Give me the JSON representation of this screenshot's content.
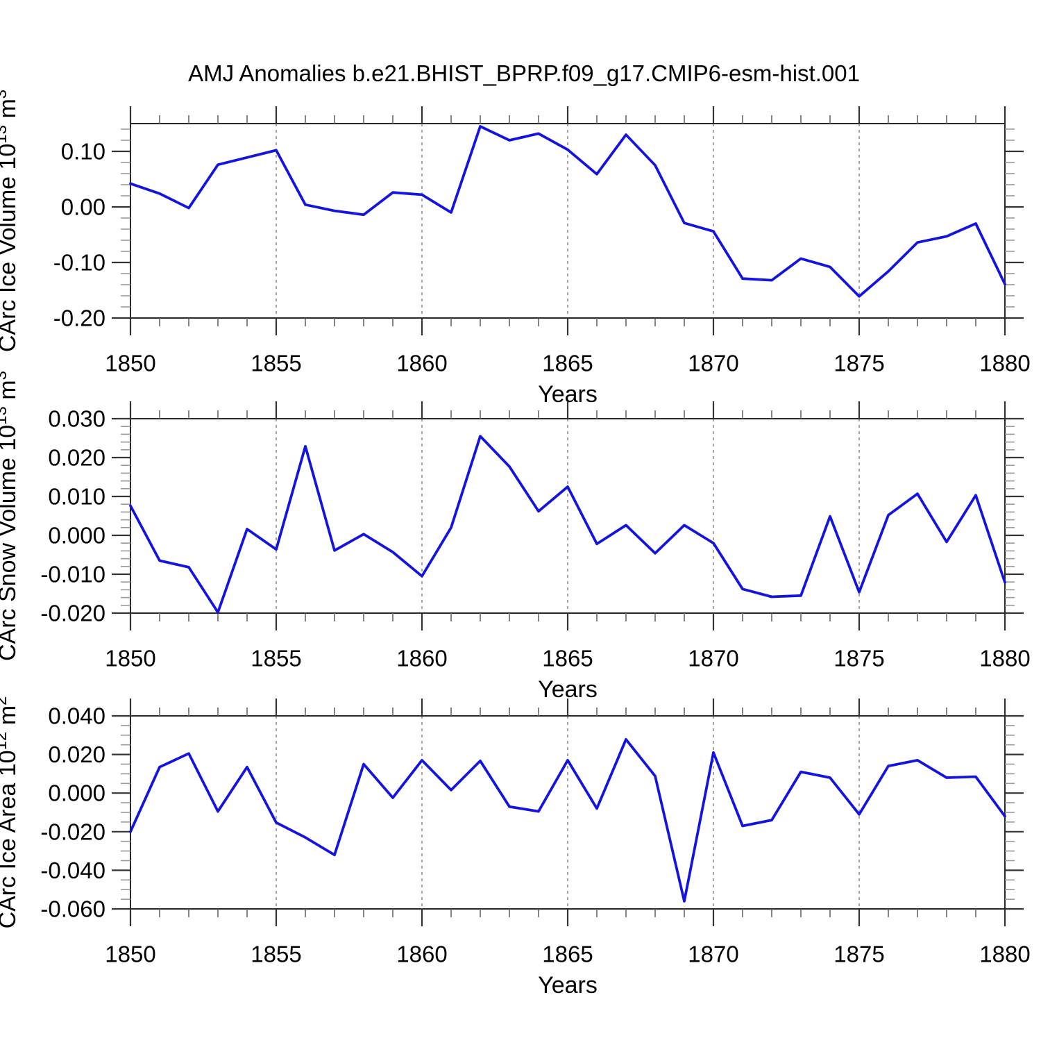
{
  "title": "AMJ Anomalies b.e21.BHIST_BPRP.f09_g17.CMIP6-esm-hist.001",
  "line_color": "#1414DF",
  "axis_color": "#282828",
  "major_tick_color": "#333333",
  "minor_tick_color": "#999999",
  "gridline_color": "#777777",
  "chart_data": [
    {
      "id": "ice-volume",
      "type": "line",
      "title": "",
      "xlabel": "Years",
      "ylabel": "CArc Ice Volume 10^13 m^3",
      "ylabel_parts": [
        {
          "t": "CArc Ice Volume 10"
        },
        {
          "t": "13",
          "sup": true
        },
        {
          "t": " m"
        },
        {
          "t": "3",
          "sup": true
        }
      ],
      "x": [
        1850,
        1851,
        1852,
        1853,
        1854,
        1855,
        1856,
        1857,
        1858,
        1859,
        1860,
        1861,
        1862,
        1863,
        1864,
        1865,
        1866,
        1867,
        1868,
        1869,
        1870,
        1871,
        1872,
        1873,
        1874,
        1875,
        1876,
        1877,
        1878,
        1879,
        1880
      ],
      "values": [
        0.042,
        0.024,
        -0.002,
        0.076,
        0.089,
        0.102,
        0.004,
        -0.007,
        -0.014,
        0.026,
        0.022,
        -0.01,
        0.145,
        0.12,
        0.132,
        0.103,
        0.059,
        0.13,
        0.075,
        -0.029,
        -0.044,
        -0.129,
        -0.132,
        -0.093,
        -0.108,
        -0.161,
        -0.116,
        -0.064,
        -0.053,
        -0.03,
        -0.139
      ],
      "xlim": [
        1850,
        1880
      ],
      "ylim": [
        -0.2,
        0.15
      ],
      "yticks": [
        0.1,
        0.0,
        -0.1,
        -0.2
      ],
      "ytick_labels": [
        "0.10",
        "0.00",
        "-0.10",
        "-0.20"
      ],
      "y_minor_step": 0.02,
      "xticks": [
        1850,
        1855,
        1860,
        1865,
        1870,
        1875,
        1880
      ],
      "xtick_labels": [
        "1850",
        "1855",
        "1860",
        "1865",
        "1870",
        "1875",
        "1880"
      ],
      "x_minor_step": 1,
      "x_gridlines": [
        1855,
        1860,
        1865,
        1870,
        1875
      ],
      "grid": "dashed-vertical",
      "legend": "none"
    },
    {
      "id": "snow-volume",
      "type": "line",
      "title": "",
      "xlabel": "Years",
      "ylabel": "CArc Snow Volume 10^13 m^3",
      "ylabel_parts": [
        {
          "t": "CArc Snow Volume 10"
        },
        {
          "t": "13",
          "sup": true
        },
        {
          "t": " m"
        },
        {
          "t": "3",
          "sup": true
        }
      ],
      "x": [
        1850,
        1851,
        1852,
        1853,
        1854,
        1855,
        1856,
        1857,
        1858,
        1859,
        1860,
        1861,
        1862,
        1863,
        1864,
        1865,
        1866,
        1867,
        1868,
        1869,
        1870,
        1871,
        1872,
        1873,
        1874,
        1875,
        1876,
        1877,
        1878,
        1879,
        1880
      ],
      "values": [
        0.0076,
        -0.0065,
        -0.0082,
        -0.0198,
        0.0016,
        -0.0036,
        0.0229,
        -0.0039,
        0.0003,
        -0.0043,
        -0.0105,
        0.002,
        0.0255,
        0.0177,
        0.0062,
        0.0125,
        -0.0022,
        0.0026,
        -0.0046,
        0.0026,
        -0.002,
        -0.0138,
        -0.0158,
        -0.0155,
        0.0049,
        -0.0146,
        0.0052,
        0.0107,
        -0.0017,
        0.0103,
        -0.0121
      ],
      "xlim": [
        1850,
        1880
      ],
      "ylim": [
        -0.02,
        0.03
      ],
      "yticks": [
        0.03,
        0.02,
        0.01,
        0.0,
        -0.01,
        -0.02
      ],
      "ytick_labels": [
        "0.030",
        "0.020",
        "0.010",
        "0.000",
        "-0.010",
        "-0.020"
      ],
      "y_minor_step": 0.002,
      "xticks": [
        1850,
        1855,
        1860,
        1865,
        1870,
        1875,
        1880
      ],
      "xtick_labels": [
        "1850",
        "1855",
        "1860",
        "1865",
        "1870",
        "1875",
        "1880"
      ],
      "x_minor_step": 1,
      "x_gridlines": [
        1855,
        1860,
        1865,
        1870,
        1875
      ],
      "grid": "dashed-vertical",
      "legend": "none"
    },
    {
      "id": "ice-area",
      "type": "line",
      "title": "",
      "xlabel": "Years",
      "ylabel": "CArc Ice Area 10^12 m^2",
      "ylabel_parts": [
        {
          "t": "CArc Ice Area 10"
        },
        {
          "t": "12",
          "sup": true
        },
        {
          "t": " m"
        },
        {
          "t": "2",
          "sup": true
        }
      ],
      "x": [
        1850,
        1851,
        1852,
        1853,
        1854,
        1855,
        1856,
        1857,
        1858,
        1859,
        1860,
        1861,
        1862,
        1863,
        1864,
        1865,
        1866,
        1867,
        1868,
        1869,
        1870,
        1871,
        1872,
        1873,
        1874,
        1875,
        1876,
        1877,
        1878,
        1879,
        1880
      ],
      "values": [
        -0.02,
        0.0135,
        0.0205,
        -0.0095,
        0.0135,
        -0.0153,
        -0.023,
        -0.032,
        0.015,
        -0.0024,
        0.017,
        0.0016,
        0.0167,
        -0.007,
        -0.0095,
        0.017,
        -0.008,
        0.0278,
        0.0088,
        -0.056,
        0.021,
        -0.017,
        -0.014,
        0.011,
        0.008,
        -0.011,
        0.014,
        0.017,
        0.008,
        0.0085,
        -0.012
      ],
      "xlim": [
        1850,
        1880
      ],
      "ylim": [
        -0.06,
        0.04
      ],
      "yticks": [
        0.04,
        0.02,
        0.0,
        -0.02,
        -0.04,
        -0.06
      ],
      "ytick_labels": [
        "0.040",
        "0.020",
        "0.000",
        "-0.020",
        "-0.040",
        "-0.060"
      ],
      "y_minor_step": 0.005,
      "xticks": [
        1850,
        1855,
        1860,
        1865,
        1870,
        1875,
        1880
      ],
      "xtick_labels": [
        "1850",
        "1855",
        "1860",
        "1865",
        "1870",
        "1875",
        "1880"
      ],
      "x_minor_step": 1,
      "x_gridlines": [
        1855,
        1860,
        1865,
        1870,
        1875
      ],
      "grid": "dashed-vertical",
      "legend": "none"
    }
  ]
}
